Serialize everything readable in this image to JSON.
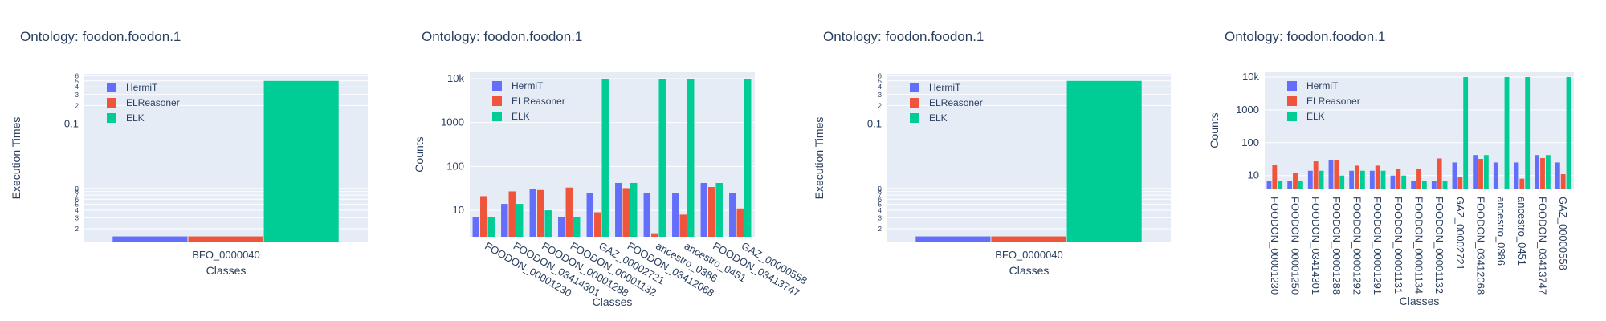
{
  "colors": {
    "hermit": "#636efa",
    "elreasoner": "#EF553B",
    "elk": "#00cc96",
    "plot_bg": "#E5ECF6",
    "grid": "#ffffff",
    "text": "#2a3f5f"
  },
  "chart_data": [
    {
      "type": "bar",
      "title": "Ontology: foodon.foodon.1",
      "xlabel": "Classes",
      "ylabel": "Execution Times",
      "yscale": "log",
      "ylim": [
        0.0012,
        0.65
      ],
      "yticks": [
        {
          "v": 0.002,
          "t": "2"
        },
        {
          "v": 0.003,
          "t": "3"
        },
        {
          "v": 0.004,
          "t": "4"
        },
        {
          "v": 0.005,
          "t": "5"
        },
        {
          "v": 0.006,
          "t": "6"
        },
        {
          "v": 0.007,
          "t": "7"
        },
        {
          "v": 0.008,
          "t": "8"
        },
        {
          "v": 0.009,
          "t": "9"
        },
        {
          "v": 0.1,
          "t": "0.1"
        },
        {
          "v": 0.2,
          "t": "2"
        },
        {
          "v": 0.3,
          "t": "3"
        },
        {
          "v": 0.4,
          "t": "4"
        },
        {
          "v": 0.5,
          "t": "5"
        },
        {
          "v": 0.6,
          "t": "6"
        }
      ],
      "categories": [
        "BFO_0000040"
      ],
      "xtick_angle": 0,
      "legend_position": "top-left",
      "series": [
        {
          "name": "HermiT",
          "key": "hermit",
          "values": [
            0.0015
          ]
        },
        {
          "name": "ELReasoner",
          "key": "elreasoner",
          "values": [
            0.0015
          ]
        },
        {
          "name": "ELK",
          "key": "elk",
          "values": [
            0.5
          ]
        }
      ]
    },
    {
      "type": "bar",
      "title": "Ontology: foodon.foodon.1",
      "xlabel": "Classes",
      "ylabel": "Counts",
      "yscale": "log",
      "ylim": [
        2.5,
        14000
      ],
      "yticks": [
        {
          "v": 10,
          "t": "10"
        },
        {
          "v": 100,
          "t": "100"
        },
        {
          "v": 1000,
          "t": "1000"
        },
        {
          "v": 10000,
          "t": "10k"
        }
      ],
      "categories": [
        "FOODON_00001230",
        "FOODON_03414301",
        "FOODON_00001288",
        "FOODON_00001132",
        "GAZ_00002721",
        "FOODON_03412068",
        "ancestro_0386",
        "ancestro_0451",
        "FOODON_03413747",
        "GAZ_00000558"
      ],
      "xtick_angle": 30,
      "legend_position": "top-left",
      "series": [
        {
          "name": "HermiT",
          "key": "hermit",
          "values": [
            7,
            14,
            30,
            7,
            25,
            42,
            25,
            25,
            42,
            25
          ]
        },
        {
          "name": "ELReasoner",
          "key": "elreasoner",
          "values": [
            21,
            27,
            29,
            33,
            9,
            32,
            3,
            8,
            34,
            11
          ]
        },
        {
          "name": "ELK",
          "key": "elk",
          "values": [
            7,
            14,
            10,
            7,
            10000,
            42,
            10000,
            10000,
            42,
            10000
          ]
        }
      ]
    },
    {
      "type": "bar",
      "title": "Ontology: foodon.foodon.1",
      "xlabel": "Classes",
      "ylabel": "Execution Times",
      "yscale": "log",
      "ylim": [
        0.0012,
        0.65
      ],
      "yticks": [
        {
          "v": 0.002,
          "t": "2"
        },
        {
          "v": 0.003,
          "t": "3"
        },
        {
          "v": 0.004,
          "t": "4"
        },
        {
          "v": 0.005,
          "t": "5"
        },
        {
          "v": 0.006,
          "t": "6"
        },
        {
          "v": 0.007,
          "t": "7"
        },
        {
          "v": 0.008,
          "t": "8"
        },
        {
          "v": 0.009,
          "t": "9"
        },
        {
          "v": 0.1,
          "t": "0.1"
        },
        {
          "v": 0.2,
          "t": "2"
        },
        {
          "v": 0.3,
          "t": "3"
        },
        {
          "v": 0.4,
          "t": "4"
        },
        {
          "v": 0.5,
          "t": "5"
        },
        {
          "v": 0.6,
          "t": "6"
        }
      ],
      "categories": [
        "BFO_0000040"
      ],
      "xtick_angle": 0,
      "legend_position": "top-left",
      "series": [
        {
          "name": "HermiT",
          "key": "hermit",
          "values": [
            0.0015
          ]
        },
        {
          "name": "ELReasoner",
          "key": "elreasoner",
          "values": [
            0.0015
          ]
        },
        {
          "name": "ELK",
          "key": "elk",
          "values": [
            0.5
          ]
        }
      ]
    },
    {
      "type": "bar",
      "title": "Ontology: foodon.foodon.1",
      "xlabel": "Classes",
      "ylabel": "Counts",
      "yscale": "log",
      "ylim": [
        4,
        14000
      ],
      "yticks": [
        {
          "v": 10,
          "t": "10"
        },
        {
          "v": 100,
          "t": "100"
        },
        {
          "v": 1000,
          "t": "1000"
        },
        {
          "v": 10000,
          "t": "10k"
        }
      ],
      "categories": [
        "FOODON_00001230",
        "FOODON_00001250",
        "FOODON_03414301",
        "FOODON_00001288",
        "FOODON_00001292",
        "FOODON_00001291",
        "FOODON_00001131",
        "FOODON_00001134",
        "FOODON_00001132",
        "GAZ_00002721",
        "FOODON_03412068",
        "ancestro_0386",
        "ancestro_0451",
        "FOODON_03413747",
        "GAZ_00000558"
      ],
      "xtick_angle": 90,
      "legend_position": "top-left",
      "series": [
        {
          "name": "HermiT",
          "key": "hermit",
          "values": [
            7,
            7,
            14,
            30,
            14,
            14,
            10,
            7,
            7,
            25,
            42,
            25,
            25,
            42,
            25
          ]
        },
        {
          "name": "ELReasoner",
          "key": "elreasoner",
          "values": [
            21,
            12,
            27,
            29,
            20,
            20,
            16,
            16,
            33,
            9,
            32,
            3,
            8,
            34,
            11
          ]
        },
        {
          "name": "ELK",
          "key": "elk",
          "values": [
            7,
            7,
            14,
            10,
            14,
            14,
            10,
            7,
            7,
            10000,
            42,
            10000,
            10000,
            42,
            10000
          ]
        }
      ]
    }
  ]
}
